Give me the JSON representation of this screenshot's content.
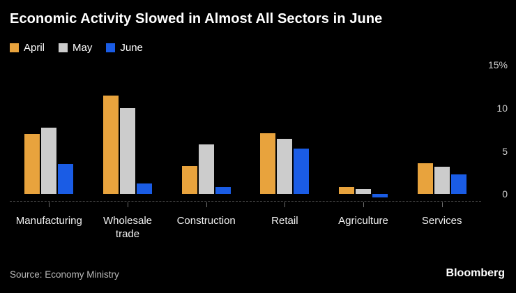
{
  "title": "Economic Activity Slowed in Almost All Sectors in June",
  "source": "Source: Economy Ministry",
  "brand": "Bloomberg",
  "colors": {
    "background": "#000000",
    "title_text": "#ffffff",
    "axis_text": "#cfcfcf",
    "category_text": "#f2f2f2",
    "source_text": "#b9b9b9",
    "baseline_dash": "#4f4f4f"
  },
  "chart_data": {
    "type": "bar",
    "title": "Economic Activity Slowed in Almost All Sectors in June",
    "categories": [
      "Manufacturing",
      "Wholesale trade",
      "Construction",
      "Retail",
      "Agriculture",
      "Services"
    ],
    "series": [
      {
        "name": "April",
        "color": "#E8A33D",
        "values": [
          7.0,
          11.5,
          3.3,
          7.1,
          0.8,
          3.6
        ]
      },
      {
        "name": "May",
        "color": "#CCCCCC",
        "values": [
          7.7,
          10.0,
          5.8,
          6.4,
          0.6,
          3.2
        ]
      },
      {
        "name": "June",
        "color": "#1A5CE5",
        "values": [
          3.5,
          1.2,
          0.8,
          5.3,
          -0.4,
          2.3
        ]
      }
    ],
    "yticks": [
      15,
      10,
      5,
      0
    ],
    "ytick_labels": [
      "15%",
      "10",
      "5",
      "0"
    ],
    "ylim": [
      -0.8,
      15.6
    ],
    "xlabel": "",
    "ylabel": "",
    "grid": false,
    "legend_position": "top-left",
    "y_axis_side": "right"
  }
}
